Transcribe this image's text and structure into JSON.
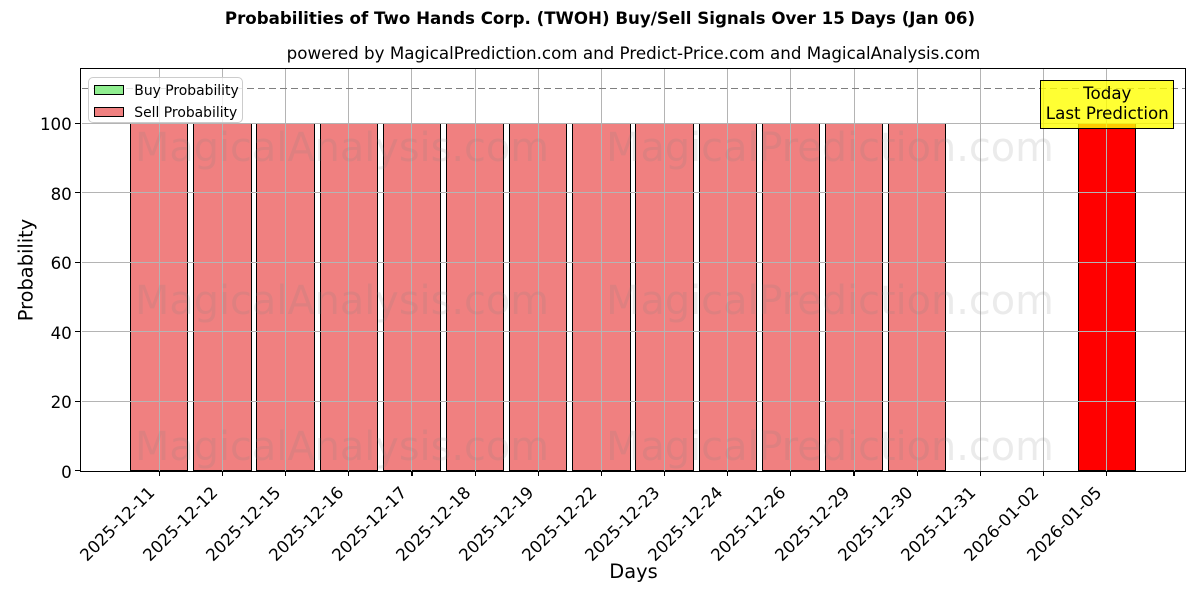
{
  "title": "Probabilities of Two Hands Corp. (TWOH) Buy/Sell Signals Over 15 Days (Jan 06)",
  "subtitle": "powered by MagicalPrediction.com and Predict-Price.com and MagicalAnalysis.com",
  "legend": {
    "items": [
      {
        "label": "Buy Probability",
        "color": "#90ee90"
      },
      {
        "label": "Sell Probability",
        "color": "#f08080"
      }
    ]
  },
  "annotation_box": {
    "line1": "Today",
    "line2": "Last Prediction",
    "bg_color": "#ffff00"
  },
  "watermarks": {
    "left_text": "MagicalAnalysis.com",
    "right_text": "MagicalPrediction.com"
  },
  "axes": {
    "xlabel": "Days",
    "ylabel": "Probability",
    "ytick_labels": [
      "0",
      "20",
      "40",
      "60",
      "80",
      "100"
    ]
  },
  "chart_data": {
    "type": "bar",
    "title": "Probabilities of Two Hands Corp. (TWOH) Buy/Sell Signals Over 15 Days (Jan 06)",
    "xlabel": "Days",
    "ylabel": "Probability",
    "categories": [
      "2025-12-11",
      "2025-12-12",
      "2025-12-15",
      "2025-12-16",
      "2025-12-17",
      "2025-12-18",
      "2025-12-19",
      "2025-12-22",
      "2025-12-23",
      "2025-12-24",
      "2025-12-26",
      "2025-12-29",
      "2025-12-30",
      "2025-12-31",
      "2026-01-02",
      "2026-01-05"
    ],
    "series": [
      {
        "name": "Buy Probability",
        "color": "#90ee90",
        "values": [
          0,
          0,
          0,
          0,
          0,
          0,
          0,
          0,
          0,
          0,
          0,
          0,
          0,
          0,
          0,
          0
        ]
      },
      {
        "name": "Sell Probability",
        "color": "#f08080",
        "values": [
          100,
          100,
          100,
          100,
          100,
          100,
          100,
          100,
          100,
          100,
          100,
          100,
          100,
          0,
          0,
          100
        ]
      }
    ],
    "today_index": 15,
    "today_color": "#ff0000",
    "threshold_line": {
      "y": 110,
      "style": "dashed",
      "color": "gray"
    },
    "ylim": [
      0,
      115.6
    ],
    "yticks": [
      0,
      20,
      40,
      60,
      80,
      100
    ],
    "grid": true,
    "legend_position": "upper left"
  }
}
